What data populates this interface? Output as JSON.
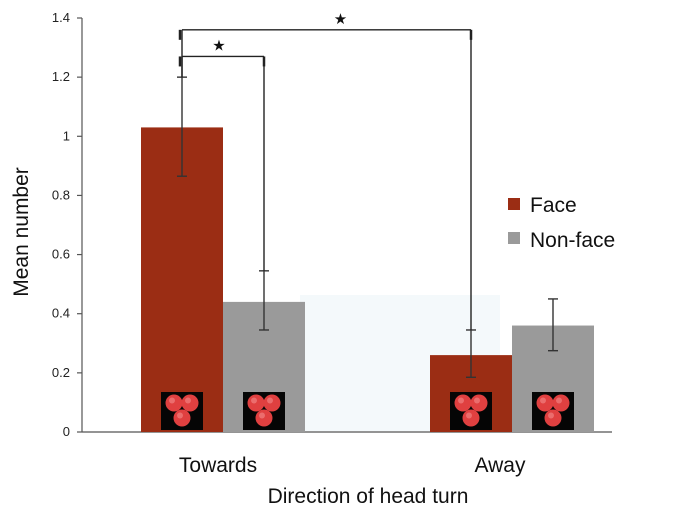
{
  "chart_data": {
    "type": "bar",
    "title": "",
    "xlabel": "Direction of head turn",
    "ylabel": "Mean number",
    "categories": [
      "Towards",
      "Away"
    ],
    "series": [
      {
        "name": "Face",
        "color": "#9b2d14",
        "values": [
          1.03,
          0.26
        ],
        "error_low": [
          0.865,
          0.185
        ],
        "error_high": [
          1.2,
          0.345
        ]
      },
      {
        "name": "Non-face",
        "color": "#9a9a9a",
        "values": [
          0.44,
          0.36
        ],
        "error_low": [
          0.345,
          0.275
        ],
        "error_high": [
          0.545,
          0.45
        ]
      }
    ],
    "ylim": [
      0,
      1.4
    ],
    "yticks": [
      "0",
      "0.2",
      "0.4",
      "0.6",
      "0.8",
      "1",
      "1.2",
      "1.4"
    ],
    "ytick_values": [
      0,
      0.2,
      0.4,
      0.6,
      0.8,
      1.0,
      1.2,
      1.4
    ],
    "grid": false,
    "legend": {
      "placement": "right",
      "entries": [
        "Face",
        "Non-face"
      ]
    },
    "significance": [
      {
        "label": "★",
        "between": [
          "Towards Face",
          "Towards Non-face"
        ],
        "level": 1.27
      },
      {
        "label": "★",
        "between": [
          "Towards Face",
          "Away Face"
        ],
        "level": 1.36
      }
    ],
    "stimulus_icon": "three-red-dots-face-icon"
  }
}
